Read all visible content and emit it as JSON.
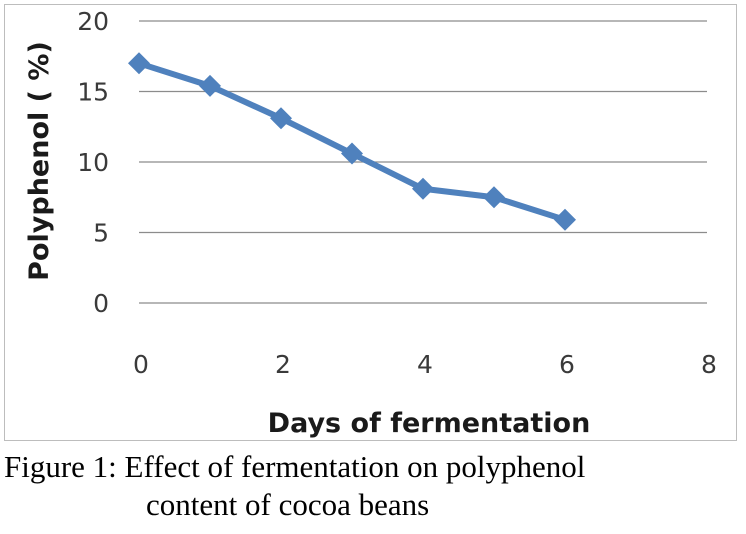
{
  "chart_data": {
    "type": "line",
    "title": "",
    "xlabel": "Days of fermentation",
    "ylabel": "Polyphenol ( %)",
    "xlim": [
      0,
      8
    ],
    "ylim": [
      0,
      20
    ],
    "xticks": [
      0,
      2,
      4,
      6,
      8
    ],
    "yticks": [
      0,
      5,
      10,
      15,
      20
    ],
    "grid": "horizontal",
    "legend": "none",
    "series": [
      {
        "color": "#4f81bd",
        "marker": "diamond",
        "x": [
          0,
          1,
          2,
          3,
          4,
          5,
          6
        ],
        "y": [
          17.0,
          15.4,
          13.1,
          10.6,
          8.1,
          7.5,
          5.9
        ]
      }
    ]
  },
  "caption": {
    "line1": "Figure 1: Effect of fermentation on polyphenol",
    "line2": "content of cocoa beans"
  }
}
